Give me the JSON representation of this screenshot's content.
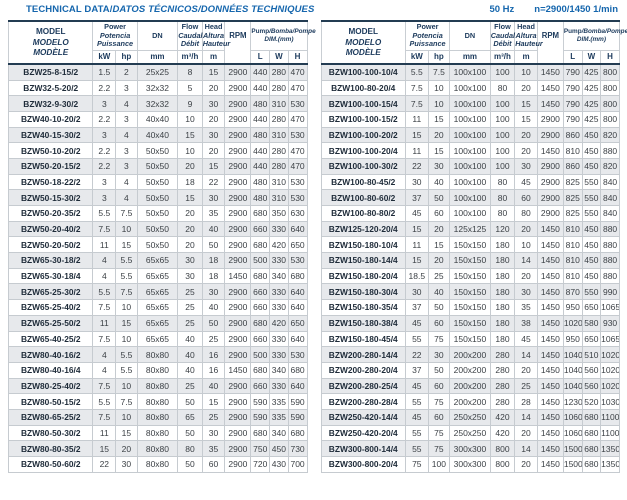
{
  "title": {
    "left_roman": "TECHNICAL DATA/",
    "left_italic": "DATOS TÉCNICOS/DONNÉES TECHNIQUES",
    "frequency": "50 Hz",
    "speed": "n=2900/1450 1/min"
  },
  "colors": {
    "accent_blue": "#1566ad",
    "header_navy": "#1c3a5c",
    "row_stripe": "#e7e9ec",
    "border_dark": "#233c52",
    "border_light": "#c6cbd0"
  },
  "header": {
    "model_lines": {
      "l1": "MODEL",
      "l2": "MODELO",
      "l3": "MODÈLE"
    },
    "power_lines": {
      "l1": "Power",
      "l2": "Potencia",
      "l3": "Puissance"
    },
    "power_units": {
      "kw": "kW",
      "hp": "hp"
    },
    "dn_label": "DN",
    "dn_unit": "mm",
    "flow_lines": {
      "l1": "Flow",
      "l2": "Caudal",
      "l3": "Débit"
    },
    "flow_unit": "m³/h",
    "head_lines": {
      "l1": "Head",
      "l2": "Altura",
      "l3": "Hauteur"
    },
    "head_unit": "m",
    "rpm_label": "RPM",
    "dim_title_roman": "Pump",
    "dim_title_italic": "/Bomba/Pompe",
    "dim_sub": "DIM.(mm)",
    "dim_units": {
      "l": "L",
      "w": "W",
      "h": "H"
    }
  },
  "left_table": {
    "rows": [
      [
        "BZW25-8-15/2",
        "1.5",
        "2",
        "25x25",
        "8",
        "15",
        "2900",
        "440",
        "280",
        "470"
      ],
      [
        "BZW32-5-20/2",
        "2.2",
        "3",
        "32x32",
        "5",
        "20",
        "2900",
        "440",
        "280",
        "470"
      ],
      [
        "BZW32-9-30/2",
        "3",
        "4",
        "32x32",
        "9",
        "30",
        "2900",
        "480",
        "310",
        "530"
      ],
      [
        "BZW40-10-20/2",
        "2.2",
        "3",
        "40x40",
        "10",
        "20",
        "2900",
        "440",
        "280",
        "470"
      ],
      [
        "BZW40-15-30/2",
        "3",
        "4",
        "40x40",
        "15",
        "30",
        "2900",
        "480",
        "310",
        "530"
      ],
      [
        "BZW50-10-20/2",
        "2.2",
        "3",
        "50x50",
        "10",
        "20",
        "2900",
        "440",
        "280",
        "470"
      ],
      [
        "BZW50-20-15/2",
        "2.2",
        "3",
        "50x50",
        "20",
        "15",
        "2900",
        "440",
        "280",
        "470"
      ],
      [
        "BZW50-18-22/2",
        "3",
        "4",
        "50x50",
        "18",
        "22",
        "2900",
        "480",
        "310",
        "530"
      ],
      [
        "BZW50-15-30/2",
        "3",
        "4",
        "50x50",
        "15",
        "30",
        "2900",
        "480",
        "310",
        "530"
      ],
      [
        "BZW50-20-35/2",
        "5.5",
        "7.5",
        "50x50",
        "20",
        "35",
        "2900",
        "680",
        "350",
        "630"
      ],
      [
        "BZW50-20-40/2",
        "7.5",
        "10",
        "50x50",
        "20",
        "40",
        "2900",
        "660",
        "330",
        "640"
      ],
      [
        "BZW50-20-50/2",
        "11",
        "15",
        "50x50",
        "20",
        "50",
        "2900",
        "680",
        "420",
        "650"
      ],
      [
        "BZW65-30-18/2",
        "4",
        "5.5",
        "65x65",
        "30",
        "18",
        "2900",
        "500",
        "330",
        "530"
      ],
      [
        "BZW65-30-18/4",
        "4",
        "5.5",
        "65x65",
        "30",
        "18",
        "1450",
        "680",
        "340",
        "680"
      ],
      [
        "BZW65-25-30/2",
        "5.5",
        "7.5",
        "65x65",
        "25",
        "30",
        "2900",
        "660",
        "330",
        "640"
      ],
      [
        "BZW65-25-40/2",
        "7.5",
        "10",
        "65x65",
        "25",
        "40",
        "2900",
        "660",
        "330",
        "640"
      ],
      [
        "BZW65-25-50/2",
        "11",
        "15",
        "65x65",
        "25",
        "50",
        "2900",
        "680",
        "420",
        "650"
      ],
      [
        "BZW65-40-25/2",
        "7.5",
        "10",
        "65x65",
        "40",
        "25",
        "2900",
        "660",
        "330",
        "640"
      ],
      [
        "BZW80-40-16/2",
        "4",
        "5.5",
        "80x80",
        "40",
        "16",
        "2900",
        "500",
        "330",
        "530"
      ],
      [
        "BZW80-40-16/4",
        "4",
        "5.5",
        "80x80",
        "40",
        "16",
        "1450",
        "680",
        "340",
        "680"
      ],
      [
        "BZW80-25-40/2",
        "7.5",
        "10",
        "80x80",
        "25",
        "40",
        "2900",
        "660",
        "330",
        "640"
      ],
      [
        "BZW80-50-15/2",
        "5.5",
        "7.5",
        "80x80",
        "50",
        "15",
        "2900",
        "590",
        "335",
        "590"
      ],
      [
        "BZW80-65-25/2",
        "7.5",
        "10",
        "80x80",
        "65",
        "25",
        "2900",
        "590",
        "335",
        "590"
      ],
      [
        "BZW80-50-30/2",
        "11",
        "15",
        "80x80",
        "50",
        "30",
        "2900",
        "680",
        "340",
        "680"
      ],
      [
        "BZW80-80-35/2",
        "15",
        "20",
        "80x80",
        "80",
        "35",
        "2900",
        "750",
        "450",
        "730"
      ],
      [
        "BZW80-50-60/2",
        "22",
        "30",
        "80x80",
        "50",
        "60",
        "2900",
        "720",
        "430",
        "700"
      ]
    ]
  },
  "right_table": {
    "rows": [
      [
        "BZW100-100-10/4",
        "5.5",
        "7.5",
        "100x100",
        "100",
        "10",
        "1450",
        "790",
        "425",
        "800"
      ],
      [
        "BZW100-80-20/4",
        "7.5",
        "10",
        "100x100",
        "80",
        "20",
        "1450",
        "790",
        "425",
        "800"
      ],
      [
        "BZW100-100-15/4",
        "7.5",
        "10",
        "100x100",
        "100",
        "15",
        "1450",
        "790",
        "425",
        "800"
      ],
      [
        "BZW100-100-15/2",
        "11",
        "15",
        "100x100",
        "100",
        "15",
        "2900",
        "790",
        "425",
        "800"
      ],
      [
        "BZW100-100-20/2",
        "15",
        "20",
        "100x100",
        "100",
        "20",
        "2900",
        "860",
        "450",
        "820"
      ],
      [
        "BZW100-100-20/4",
        "11",
        "15",
        "100x100",
        "100",
        "20",
        "1450",
        "810",
        "450",
        "880"
      ],
      [
        "BZW100-100-30/2",
        "22",
        "30",
        "100x100",
        "100",
        "30",
        "2900",
        "860",
        "450",
        "820"
      ],
      [
        "BZW100-80-45/2",
        "30",
        "40",
        "100x100",
        "80",
        "45",
        "2900",
        "825",
        "550",
        "840"
      ],
      [
        "BZW100-80-60/2",
        "37",
        "50",
        "100x100",
        "80",
        "60",
        "2900",
        "825",
        "550",
        "840"
      ],
      [
        "BZW100-80-80/2",
        "45",
        "60",
        "100x100",
        "80",
        "80",
        "2900",
        "825",
        "550",
        "840"
      ],
      [
        "BZW125-120-20/4",
        "15",
        "20",
        "125x125",
        "120",
        "20",
        "1450",
        "810",
        "450",
        "880"
      ],
      [
        "BZW150-180-10/4",
        "11",
        "15",
        "150x150",
        "180",
        "10",
        "1450",
        "810",
        "450",
        "880"
      ],
      [
        "BZW150-180-14/4",
        "15",
        "20",
        "150x150",
        "180",
        "14",
        "1450",
        "810",
        "450",
        "880"
      ],
      [
        "BZW150-180-20/4",
        "18.5",
        "25",
        "150x150",
        "180",
        "20",
        "1450",
        "810",
        "450",
        "880"
      ],
      [
        "BZW150-180-30/4",
        "30",
        "40",
        "150x150",
        "180",
        "30",
        "1450",
        "870",
        "550",
        "990"
      ],
      [
        "BZW150-180-35/4",
        "37",
        "50",
        "150x150",
        "180",
        "35",
        "1450",
        "950",
        "650",
        "1065"
      ],
      [
        "BZW150-180-38/4",
        "45",
        "60",
        "150x150",
        "180",
        "38",
        "1450",
        "1020",
        "580",
        "930"
      ],
      [
        "BZW150-180-45/4",
        "55",
        "75",
        "150x150",
        "180",
        "45",
        "1450",
        "950",
        "650",
        "1065"
      ],
      [
        "BZW200-280-14/4",
        "22",
        "30",
        "200x200",
        "280",
        "14",
        "1450",
        "1040",
        "510",
        "1020"
      ],
      [
        "BZW200-280-20/4",
        "37",
        "50",
        "200x200",
        "280",
        "20",
        "1450",
        "1040",
        "560",
        "1020"
      ],
      [
        "BZW200-280-25/4",
        "45",
        "60",
        "200x200",
        "280",
        "25",
        "1450",
        "1040",
        "560",
        "1020"
      ],
      [
        "BZW200-280-28/4",
        "55",
        "75",
        "200x200",
        "280",
        "28",
        "1450",
        "1230",
        "520",
        "1030"
      ],
      [
        "BZW250-420-14/4",
        "45",
        "60",
        "250x250",
        "420",
        "14",
        "1450",
        "1060",
        "680",
        "1100"
      ],
      [
        "BZW250-420-20/4",
        "55",
        "75",
        "250x250",
        "420",
        "20",
        "1450",
        "1060",
        "680",
        "1100"
      ],
      [
        "BZW300-800-14/4",
        "55",
        "75",
        "300x300",
        "800",
        "14",
        "1450",
        "1500",
        "680",
        "1350"
      ],
      [
        "BZW300-800-20/4",
        "75",
        "100",
        "300x300",
        "800",
        "20",
        "1450",
        "1500",
        "680",
        "1350"
      ]
    ]
  }
}
